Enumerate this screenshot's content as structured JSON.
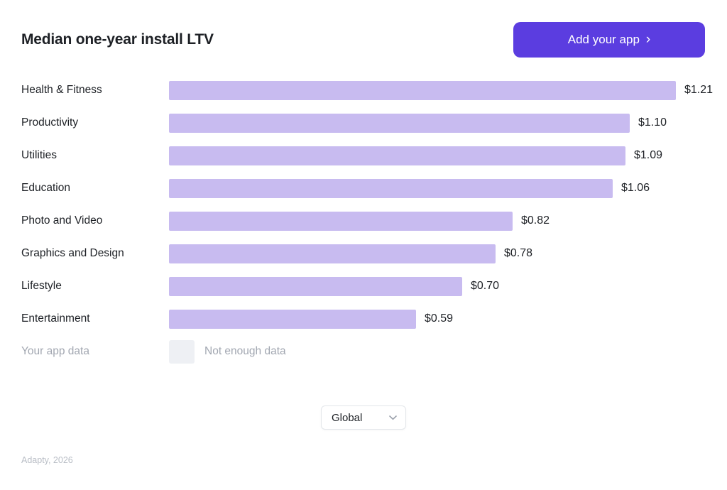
{
  "header": {
    "title": "Median one-year install LTV",
    "cta_label": "Add your app",
    "cta_chevron": "›"
  },
  "chart_data": {
    "type": "bar",
    "orientation": "horizontal",
    "title": "Median one-year install LTV",
    "categories": [
      "Health & Fitness",
      "Productivity",
      "Utilities",
      "Education",
      "Photo and Video",
      "Graphics and Design",
      "Lifestyle",
      "Entertainment"
    ],
    "values": [
      1.21,
      1.1,
      1.09,
      1.06,
      0.82,
      0.78,
      0.7,
      0.59
    ],
    "value_labels": [
      "$1.21",
      "$1.10",
      "$1.09",
      "$1.06",
      "$0.82",
      "$0.78",
      "$0.70",
      "$0.59"
    ],
    "xlim": [
      0,
      1.3
    ],
    "grid": false,
    "legend": false
  },
  "your_app_row": {
    "label": "Your app data",
    "status": "Not enough data"
  },
  "filter": {
    "selected": "Global"
  },
  "footer": {
    "credit": "Adapty, 2026"
  },
  "colors": {
    "accent": "#5b3de0",
    "bar": "#c8bbf0",
    "text": "#1d2025",
    "muted_text": "#a2a7b1",
    "placeholder_square": "#eef0f4",
    "border": "#e3e6ea",
    "footer_text": "#b8bdc5"
  }
}
